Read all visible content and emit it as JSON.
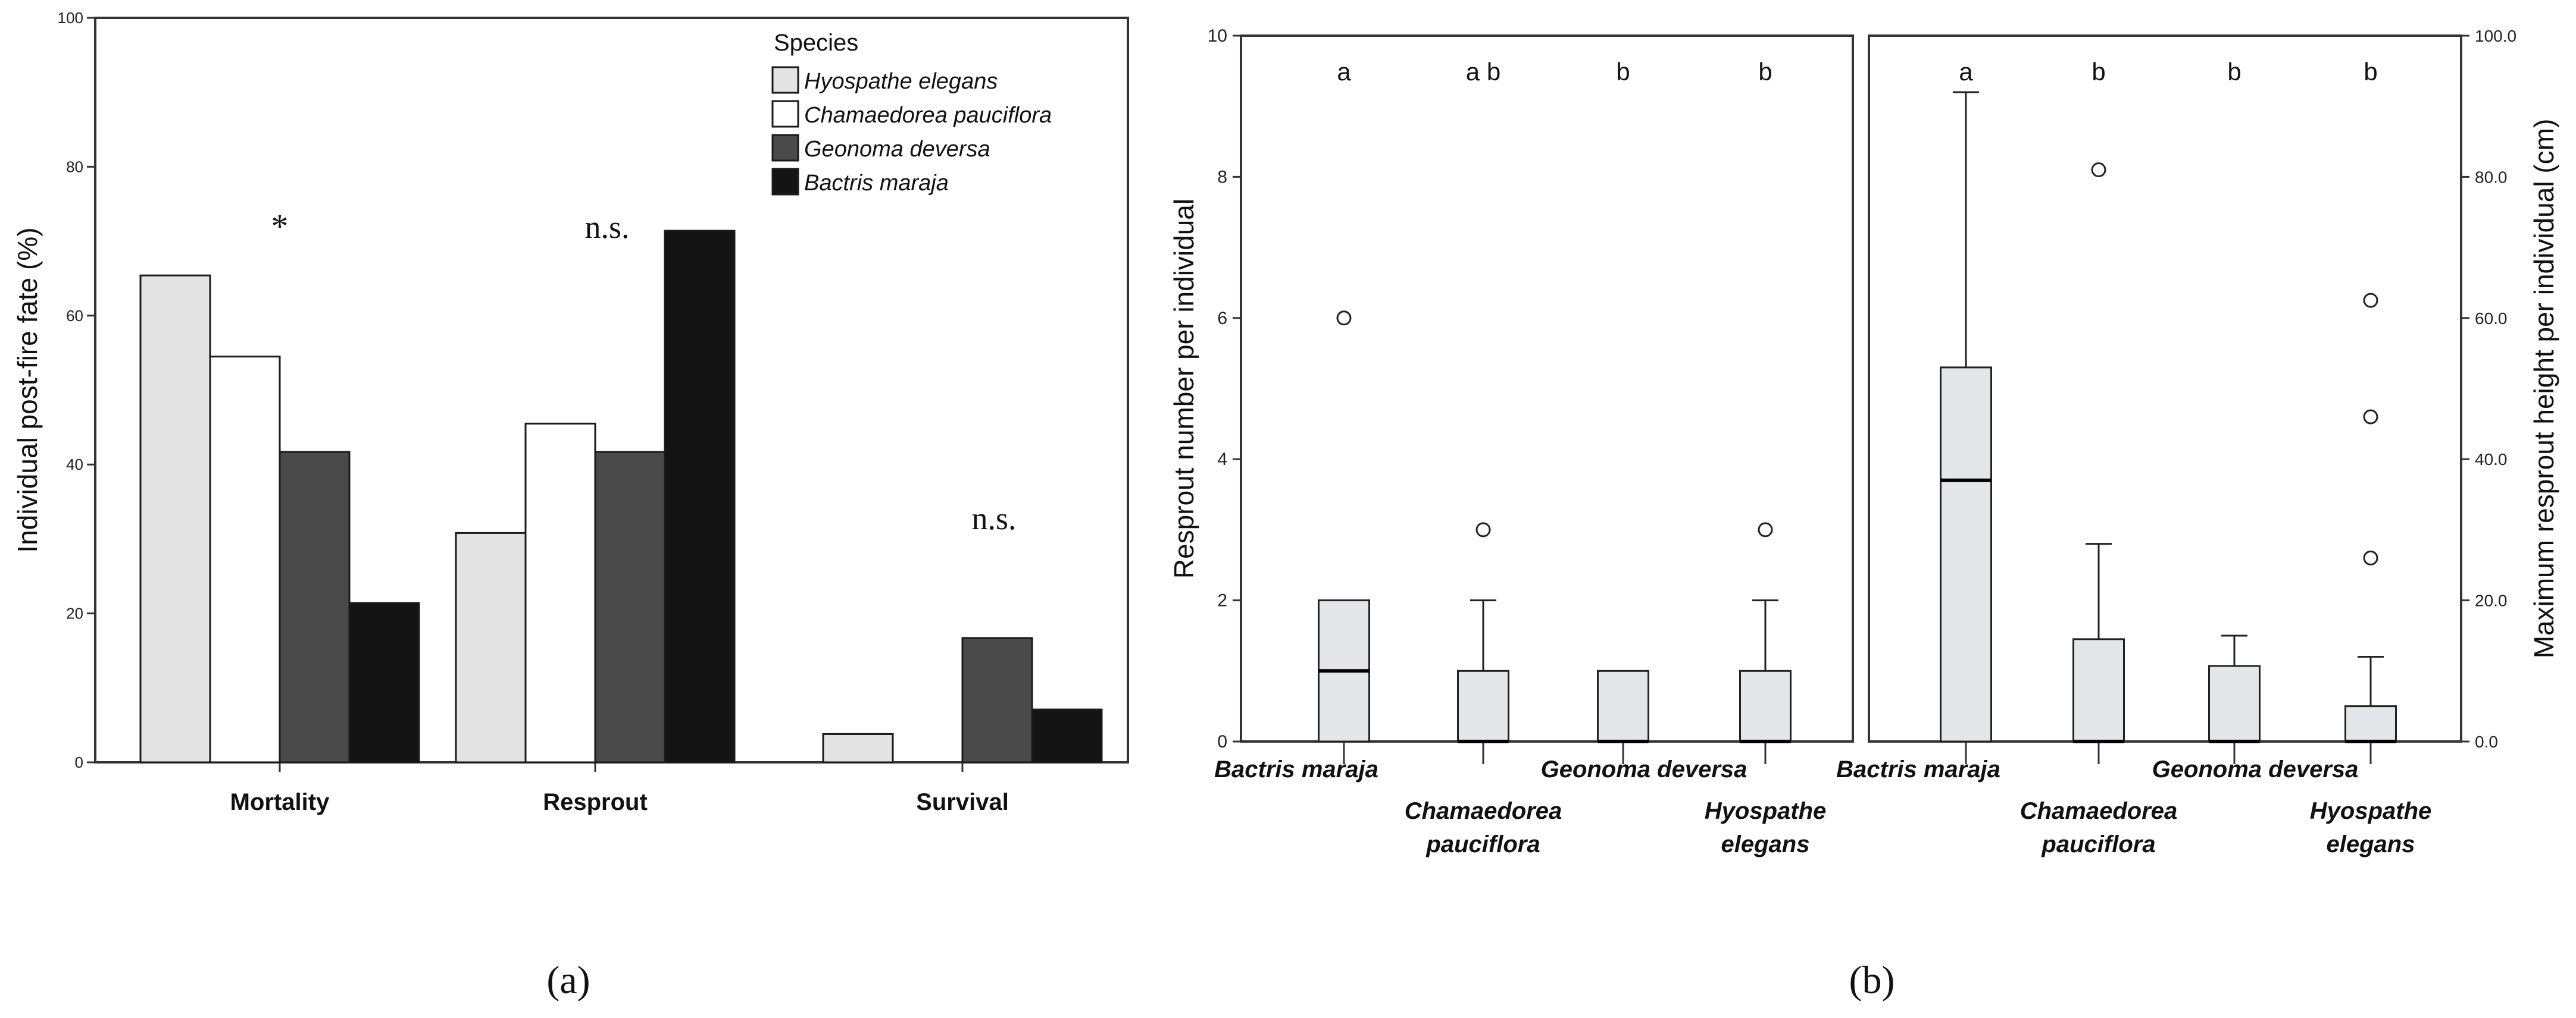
{
  "chart_data": [
    {
      "panel_label": "a",
      "type": "bar",
      "ylabel": "Individual post-fire fate (%)",
      "ylim": [
        0,
        100
      ],
      "yticks": [
        "0",
        "20",
        "40",
        "60",
        "80",
        "100"
      ],
      "ytick_values": [
        0,
        20,
        40,
        60,
        80,
        100
      ],
      "categories": [
        "Mortality",
        "Resprout",
        "Survival"
      ],
      "series": [
        {
          "name": "Hyospathe elegans",
          "color": "#e3e3e3",
          "values": [
            65.4,
            30.8,
            3.8
          ]
        },
        {
          "name": "Chamaedorea pauciflora",
          "color": "#ffffff",
          "values": [
            54.5,
            45.5,
            0
          ]
        },
        {
          "name": "Geonoma deversa",
          "color": "#4a4a4a",
          "values": [
            41.7,
            41.7,
            16.7
          ]
        },
        {
          "name": "Bactris maraja",
          "color": "#141414",
          "values": [
            21.4,
            71.4,
            7.1
          ]
        }
      ],
      "annotations": [
        "*",
        "n.s.",
        "n.s."
      ],
      "legend": {
        "title": "Species",
        "position": "top-right"
      }
    },
    {
      "panel_label": "b",
      "type": "box",
      "left_panel": {
        "ylabel": "Resprout number per individual",
        "ylim": [
          0,
          10
        ],
        "yticks": [
          "0",
          "2",
          "4",
          "6",
          "8",
          "10"
        ],
        "ytick_values": [
          0,
          2,
          4,
          6,
          8,
          10
        ],
        "categories": [
          "Bactris maraja",
          "Chamaedorea pauciflora",
          "Geonoma deversa",
          "Hyospathe elegans"
        ],
        "category_lines": [
          [
            "Bactris maraja"
          ],
          [
            "Chamaedorea",
            "pauciflora"
          ],
          [
            "Geonoma deversa"
          ],
          [
            "Hyospathe",
            "elegans"
          ]
        ],
        "boxes": [
          {
            "q1": 0,
            "median": 1,
            "q3": 2,
            "whisker_low": 0,
            "whisker_high": 2,
            "outliers": [
              6
            ]
          },
          {
            "q1": 0,
            "median": 0,
            "q3": 1,
            "whisker_low": 0,
            "whisker_high": 2,
            "outliers": [
              3
            ]
          },
          {
            "q1": 0,
            "median": 0,
            "q3": 1,
            "whisker_low": 0,
            "whisker_high": 1,
            "outliers": []
          },
          {
            "q1": 0,
            "median": 0,
            "q3": 1,
            "whisker_low": 0,
            "whisker_high": 2,
            "outliers": [
              3
            ]
          }
        ],
        "letters": [
          "a",
          "a b",
          "b",
          "b"
        ]
      },
      "right_panel": {
        "ylabel": "Maximum resprout height per individual (cm)",
        "ylim": [
          0,
          100
        ],
        "yticks": [
          "0.0",
          "20.0",
          "40.0",
          "60.0",
          "80.0",
          "100.0"
        ],
        "ytick_values": [
          0,
          20,
          40,
          60,
          80,
          100
        ],
        "categories": [
          "Bactris maraja",
          "Chamaedorea pauciflora",
          "Geonoma deversa",
          "Hyospathe elegans"
        ],
        "category_lines": [
          [
            "Bactris maraja"
          ],
          [
            "Chamaedorea",
            "pauciflora"
          ],
          [
            "Geonoma deversa"
          ],
          [
            "Hyospathe",
            "elegans"
          ]
        ],
        "boxes": [
          {
            "q1": 0,
            "median": 37,
            "q3": 53,
            "whisker_low": 0,
            "whisker_high": 92,
            "outliers": []
          },
          {
            "q1": 0,
            "median": 0,
            "q3": 14.5,
            "whisker_low": 0,
            "whisker_high": 28,
            "outliers": [
              81
            ]
          },
          {
            "q1": 0,
            "median": 0,
            "q3": 10.7,
            "whisker_low": 0,
            "whisker_high": 15,
            "outliers": []
          },
          {
            "q1": 0,
            "median": 0,
            "q3": 5,
            "whisker_low": 0,
            "whisker_high": 12,
            "outliers": [
              26,
              46,
              62.5
            ]
          }
        ],
        "letters": [
          "a",
          "b",
          "b",
          "b"
        ]
      }
    }
  ],
  "captions": {
    "a": "(a)",
    "b": "(b)"
  },
  "colors": {
    "box_fill": "#e4e5e9",
    "axis": "#333333",
    "text": "#111111"
  }
}
